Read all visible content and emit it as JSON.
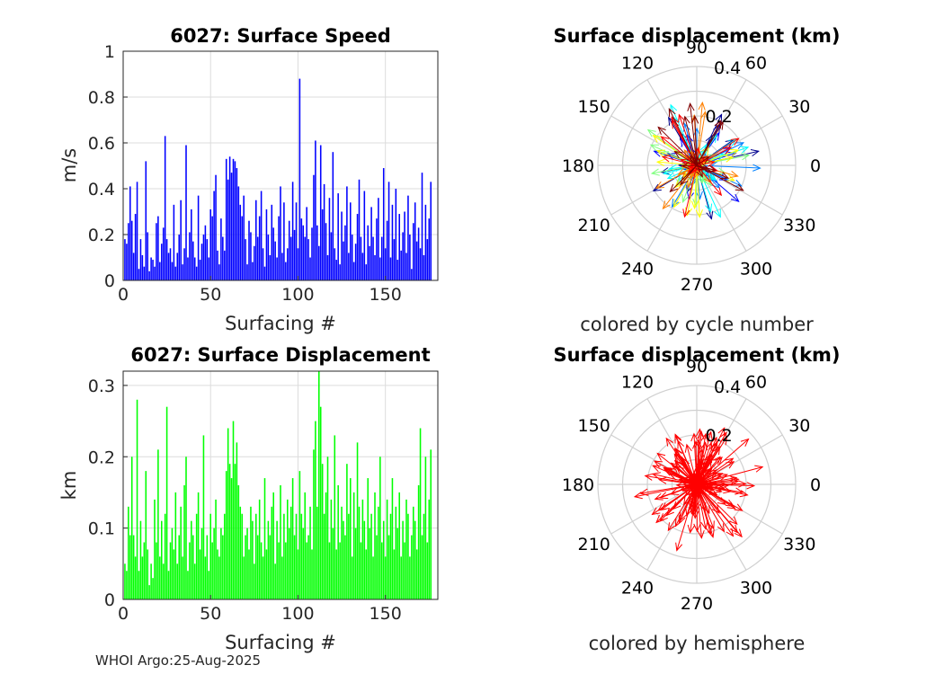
{
  "footer": "WHOI Argo:25-Aug-2025",
  "chart_data": [
    {
      "type": "bar",
      "title": "6027: Surface Speed",
      "xlabel": "Surfacing #",
      "ylabel": "m/s",
      "xlim": [
        0,
        180
      ],
      "ylim": [
        0,
        1
      ],
      "xticks": [
        "0",
        "50",
        "100",
        "150"
      ],
      "xtick_values": [
        0,
        50,
        100,
        150
      ],
      "yticks": [
        "0",
        "0.2",
        "0.4",
        "0.6",
        "0.8",
        "1"
      ],
      "ytick_values": [
        0,
        0.2,
        0.4,
        0.6,
        0.8,
        1
      ],
      "grid": true,
      "color": "#0000ff",
      "x_start": 1,
      "values": [
        0.18,
        0.16,
        0.25,
        0.41,
        0.26,
        0.12,
        0.29,
        0.43,
        0.05,
        0.18,
        0.11,
        0.06,
        0.52,
        0.21,
        0.04,
        0.1,
        0.09,
        0.06,
        0.25,
        0.28,
        0.08,
        0.16,
        0.23,
        0.63,
        0.18,
        0.12,
        0.14,
        0.08,
        0.33,
        0.06,
        0.12,
        0.2,
        0.35,
        0.07,
        0.14,
        0.59,
        0.1,
        0.21,
        0.31,
        0.17,
        0.1,
        0.06,
        0.37,
        0.09,
        0.16,
        0.2,
        0.24,
        0.18,
        0.1,
        0.31,
        0.28,
        0.39,
        0.46,
        0.13,
        0.07,
        0.27,
        0.19,
        0.13,
        0.53,
        0.44,
        0.54,
        0.47,
        0.53,
        0.52,
        0.49,
        0.41,
        0.33,
        0.28,
        0.37,
        0.18,
        0.07,
        0.26,
        0.21,
        0.08,
        0.15,
        0.35,
        0.19,
        0.28,
        0.39,
        0.14,
        0.06,
        0.31,
        0.2,
        0.11,
        0.33,
        0.23,
        0.17,
        0.1,
        0.28,
        0.41,
        0.12,
        0.34,
        0.08,
        0.14,
        0.26,
        0.19,
        0.43,
        0.22,
        0.34,
        0.14,
        0.88,
        0.27,
        0.24,
        0.19,
        0.32,
        0.18,
        0.1,
        0.23,
        0.46,
        0.61,
        0.24,
        0.15,
        0.59,
        0.31,
        0.42,
        0.25,
        0.11,
        0.36,
        0.21,
        0.56,
        0.14,
        0.09,
        0.38,
        0.07,
        0.3,
        0.17,
        0.24,
        0.41,
        0.12,
        0.34,
        0.2,
        0.08,
        0.16,
        0.29,
        0.44,
        0.19,
        0.12,
        0.39,
        0.07,
        0.24,
        0.15,
        0.32,
        0.19,
        0.11,
        0.27,
        0.36,
        0.1,
        0.19,
        0.49,
        0.14,
        0.26,
        0.43,
        0.1,
        0.33,
        0.18,
        0.4,
        0.09,
        0.29,
        0.13,
        0.21,
        0.3,
        0.12,
        0.37,
        0.2,
        0.05,
        0.25,
        0.34,
        0.17,
        0.23,
        0.14,
        0.47,
        0.11,
        0.33,
        0.18,
        0.27,
        0.43
      ]
    },
    {
      "type": "bar",
      "title": "6027: Surface Displacement",
      "xlabel": "Surfacing #",
      "ylabel": "km",
      "xlim": [
        0,
        180
      ],
      "ylim": [
        0,
        0.32
      ],
      "xticks": [
        "0",
        "50",
        "100",
        "150"
      ],
      "xtick_values": [
        0,
        50,
        100,
        150
      ],
      "yticks": [
        "0",
        "0.1",
        "0.2",
        "0.3"
      ],
      "ytick_values": [
        0,
        0.1,
        0.2,
        0.3
      ],
      "grid": true,
      "color": "#00ff00",
      "x_start": 1,
      "values": [
        0.05,
        0.04,
        0.13,
        0.09,
        0.2,
        0.09,
        0.06,
        0.28,
        0.04,
        0.11,
        0.06,
        0.08,
        0.18,
        0.07,
        0.02,
        0.05,
        0.03,
        0.14,
        0.08,
        0.21,
        0.06,
        0.11,
        0.05,
        0.12,
        0.27,
        0.04,
        0.08,
        0.1,
        0.07,
        0.15,
        0.05,
        0.09,
        0.13,
        0.06,
        0.16,
        0.2,
        0.04,
        0.08,
        0.11,
        0.09,
        0.05,
        0.12,
        0.15,
        0.07,
        0.1,
        0.23,
        0.06,
        0.09,
        0.04,
        0.12,
        0.08,
        0.1,
        0.14,
        0.07,
        0.06,
        0.1,
        0.09,
        0.12,
        0.18,
        0.24,
        0.19,
        0.17,
        0.25,
        0.19,
        0.22,
        0.16,
        0.13,
        0.12,
        0.06,
        0.09,
        0.1,
        0.07,
        0.13,
        0.11,
        0.05,
        0.12,
        0.09,
        0.14,
        0.08,
        0.06,
        0.17,
        0.07,
        0.11,
        0.09,
        0.13,
        0.15,
        0.05,
        0.11,
        0.08,
        0.16,
        0.06,
        0.12,
        0.08,
        0.14,
        0.1,
        0.13,
        0.17,
        0.09,
        0.12,
        0.07,
        0.18,
        0.12,
        0.1,
        0.15,
        0.08,
        0.09,
        0.13,
        0.07,
        0.21,
        0.25,
        0.13,
        0.32,
        0.27,
        0.19,
        0.12,
        0.15,
        0.2,
        0.08,
        0.14,
        0.1,
        0.23,
        0.07,
        0.16,
        0.08,
        0.13,
        0.11,
        0.09,
        0.19,
        0.12,
        0.17,
        0.06,
        0.15,
        0.1,
        0.22,
        0.13,
        0.08,
        0.14,
        0.11,
        0.07,
        0.17,
        0.1,
        0.12,
        0.06,
        0.15,
        0.09,
        0.13,
        0.2,
        0.08,
        0.11,
        0.06,
        0.14,
        0.09,
        0.12,
        0.17,
        0.07,
        0.13,
        0.1,
        0.15,
        0.06,
        0.11,
        0.08,
        0.14,
        0.12,
        0.06,
        0.09,
        0.13,
        0.11,
        0.07,
        0.16,
        0.24,
        0.09,
        0.12,
        0.2,
        0.08,
        0.14,
        0.21
      ]
    },
    {
      "type": "polar-vectors",
      "title": "Surface displacement (km)",
      "caption": "colored by cycle number",
      "rmax": 0.4,
      "radial_ticks": [
        "0.2",
        "0.4"
      ],
      "radial_tick_values": [
        0.2,
        0.4
      ],
      "angle_ticks": [
        "0",
        "30",
        "60",
        "90",
        "120",
        "150",
        "180",
        "210",
        "240",
        "270",
        "300",
        "330"
      ],
      "colormap": [
        "#00008f",
        "#0000ff",
        "#0080ff",
        "#00ffff",
        "#80ff80",
        "#ffff00",
        "#ff8000",
        "#ff0000",
        "#800000"
      ],
      "coloring": "cycle-number"
    },
    {
      "type": "polar-vectors",
      "title": "Surface displacement (km)",
      "caption": "colored by hemisphere",
      "rmax": 0.4,
      "radial_ticks": [
        "0.2",
        "0.4"
      ],
      "radial_tick_values": [
        0.2,
        0.4
      ],
      "angle_ticks": [
        "0",
        "30",
        "60",
        "90",
        "120",
        "150",
        "180",
        "210",
        "240",
        "270",
        "300",
        "330"
      ],
      "color": "#ff0000",
      "coloring": "hemisphere"
    }
  ]
}
